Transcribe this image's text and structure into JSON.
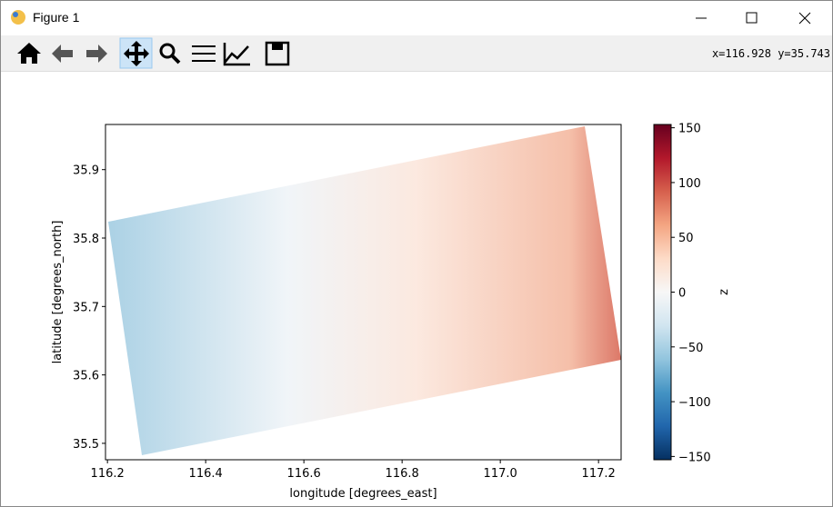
{
  "window": {
    "title": "Figure 1",
    "coords": "x=116.928 y=35.743"
  },
  "chart_data": {
    "type": "image",
    "xlabel": "longitude [degrees_east]",
    "ylabel": "latitude [degrees_north]",
    "xlim": [
      116.196,
      117.246
    ],
    "xticks": [
      116.2,
      116.4,
      116.6,
      116.8,
      {
        "value": 117,
        "label": "117.0"
      },
      117.2
    ],
    "ylim": [
      35.476,
      35.966
    ],
    "yticks": [
      35.5,
      35.6,
      35.7,
      35.8,
      35.9
    ],
    "colorbar": {
      "label": "z",
      "lim": [
        -153,
        153
      ],
      "colormap": "RdBu_r",
      "ticks": [
        {
          "value": -150,
          "label": "−150"
        },
        {
          "value": -100,
          "label": "−100"
        },
        {
          "value": -50,
          "label": "−50"
        },
        0,
        50,
        100,
        150
      ]
    }
  }
}
